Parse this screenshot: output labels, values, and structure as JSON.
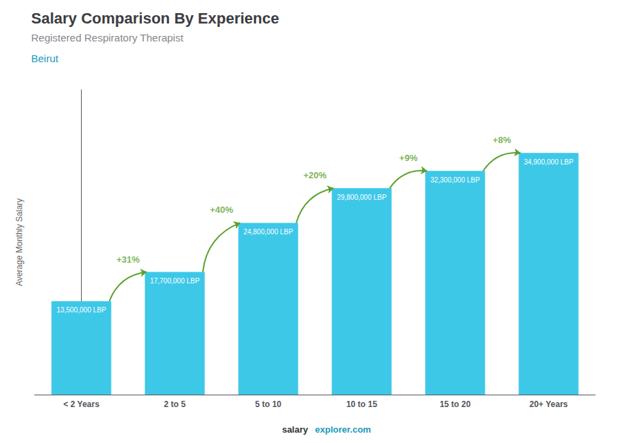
{
  "chart_data": {
    "type": "bar",
    "title": "Salary Comparison By Experience",
    "subtitle": "Registered Respiratory Therapist",
    "city": "Beirut",
    "ylabel": "Average Monthly Salary",
    "categories": [
      "< 2 Years",
      "2 to 5",
      "5 to 10",
      "10 to 15",
      "15 to 20",
      "20+ Years"
    ],
    "values": [
      13500000,
      17700000,
      24800000,
      29800000,
      32300000,
      34900000
    ],
    "value_labels": [
      "13,500,000 LBP",
      "17,700,000 LBP",
      "24,800,000 LBP",
      "29,800,000 LBP",
      "32,300,000 LBP",
      "34,900,000 LBP"
    ],
    "changes": [
      "+31%",
      "+40%",
      "+20%",
      "+9%",
      "+8%"
    ],
    "footer": [
      "salary",
      "explorer.com"
    ],
    "color": "#3ec8e8",
    "ylim": [
      0,
      44000000
    ],
    "grid": false,
    "data_labels": true,
    "tick_labels": "x"
  }
}
